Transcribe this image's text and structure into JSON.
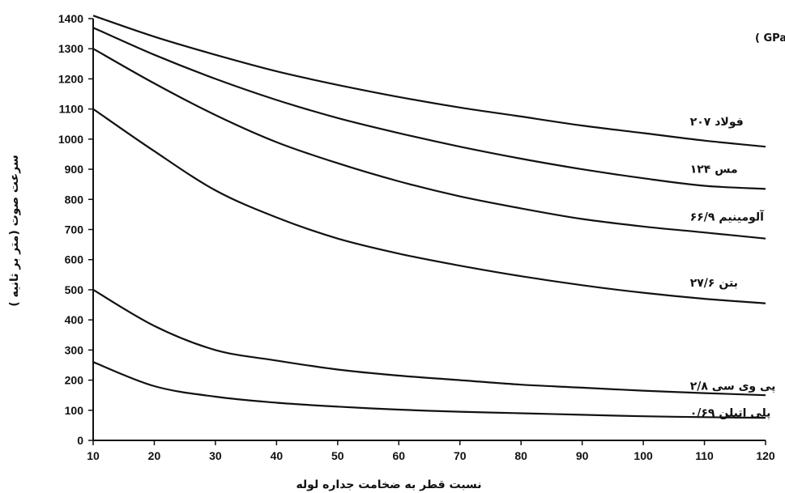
{
  "chart_data": {
    "type": "line",
    "title": "",
    "legend_title": "مدول الاستیسیته (GPa )",
    "xlabel": "نسبت قطر به ضخامت جداره لوله",
    "ylabel": "سرعت صوت (متر بر ثانیه )",
    "xlim": [
      10,
      120
    ],
    "ylim": [
      0,
      1400
    ],
    "x_ticks": [
      10,
      20,
      30,
      40,
      50,
      60,
      70,
      80,
      90,
      100,
      110,
      120
    ],
    "y_ticks": [
      0,
      100,
      200,
      300,
      400,
      500,
      600,
      700,
      800,
      900,
      1000,
      1100,
      1200,
      1300,
      1400
    ],
    "grid": false,
    "x": [
      10,
      20,
      30,
      40,
      50,
      60,
      70,
      80,
      90,
      100,
      110,
      120
    ],
    "series": [
      {
        "name": "فولاد ۲۰۷",
        "values": [
          1410,
          1340,
          1280,
          1225,
          1180,
          1140,
          1105,
          1075,
          1045,
          1020,
          995,
          975
        ]
      },
      {
        "name": "مس ۱۲۴",
        "values": [
          1370,
          1280,
          1200,
          1130,
          1070,
          1020,
          975,
          935,
          900,
          870,
          845,
          835
        ]
      },
      {
        "name": "آلومینیم ۶۶/۹",
        "values": [
          1300,
          1185,
          1080,
          990,
          920,
          860,
          810,
          770,
          735,
          710,
          690,
          670
        ]
      },
      {
        "name": "بتن ۲۷/۶",
        "values": [
          1100,
          960,
          830,
          740,
          670,
          620,
          580,
          545,
          515,
          490,
          470,
          455
        ]
      },
      {
        "name": "پی وی سی ۲/۸",
        "values": [
          500,
          380,
          300,
          265,
          235,
          215,
          200,
          185,
          175,
          165,
          157,
          150
        ]
      },
      {
        "name": "پلی اتیلن ۰/۶۹",
        "values": [
          260,
          180,
          145,
          125,
          112,
          102,
          95,
          90,
          85,
          80,
          77,
          75
        ]
      }
    ]
  }
}
